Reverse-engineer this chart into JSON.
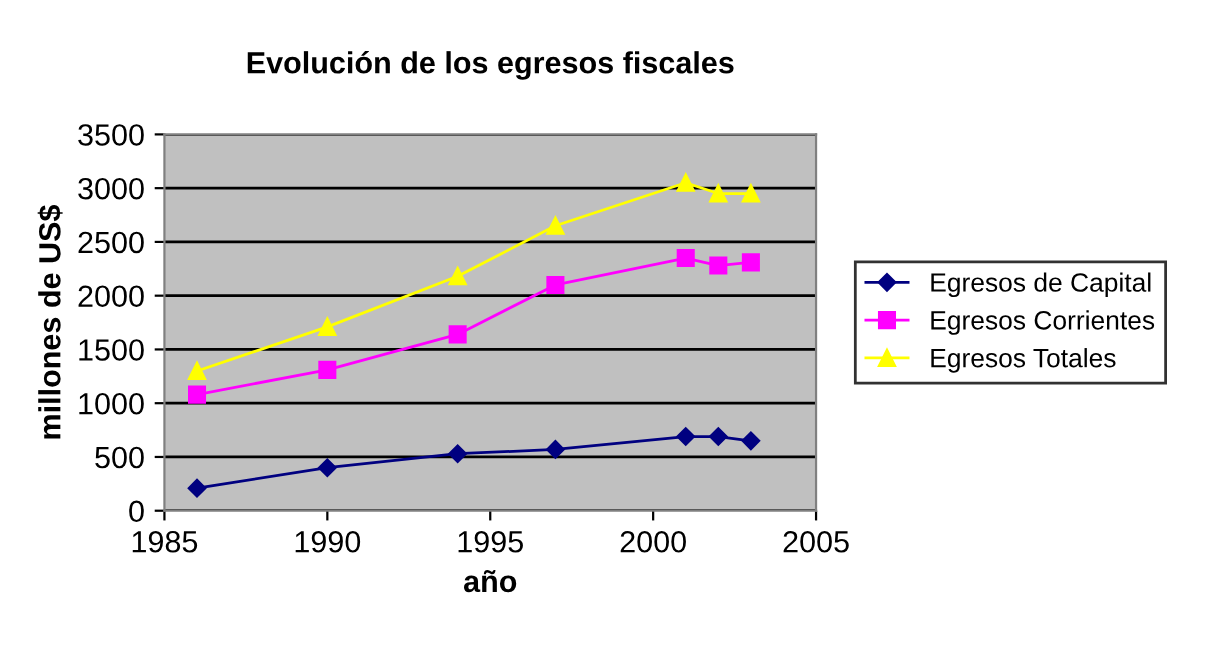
{
  "chart_data": {
    "type": "line",
    "title": "Evolución de los egresos fiscales",
    "xlabel": "año",
    "ylabel": "millones de US$",
    "x": [
      1986,
      1990,
      1994,
      1997,
      2001,
      2002,
      2003
    ],
    "series": [
      {
        "name": "Egresos de Capital",
        "color": "#000080",
        "marker": "diamond",
        "values": [
          210,
          400,
          530,
          570,
          690,
          690,
          650
        ]
      },
      {
        "name": "Egresos Corrientes",
        "color": "#ff00ff",
        "marker": "square",
        "values": [
          1080,
          1310,
          1640,
          2100,
          2350,
          2280,
          2310
        ]
      },
      {
        "name": "Egresos Totales",
        "color": "#ffff00",
        "marker": "triangle",
        "values": [
          1300,
          1710,
          2180,
          2650,
          3050,
          2950,
          2950
        ]
      }
    ],
    "xlim": [
      1985,
      2005
    ],
    "xticks": [
      1985,
      1990,
      1995,
      2000,
      2005
    ],
    "ylim": [
      0,
      3500
    ],
    "yticks": [
      0,
      500,
      1000,
      1500,
      2000,
      2500,
      3000,
      3500
    ],
    "grid": "y",
    "legend": "right",
    "line_style": "solid"
  }
}
